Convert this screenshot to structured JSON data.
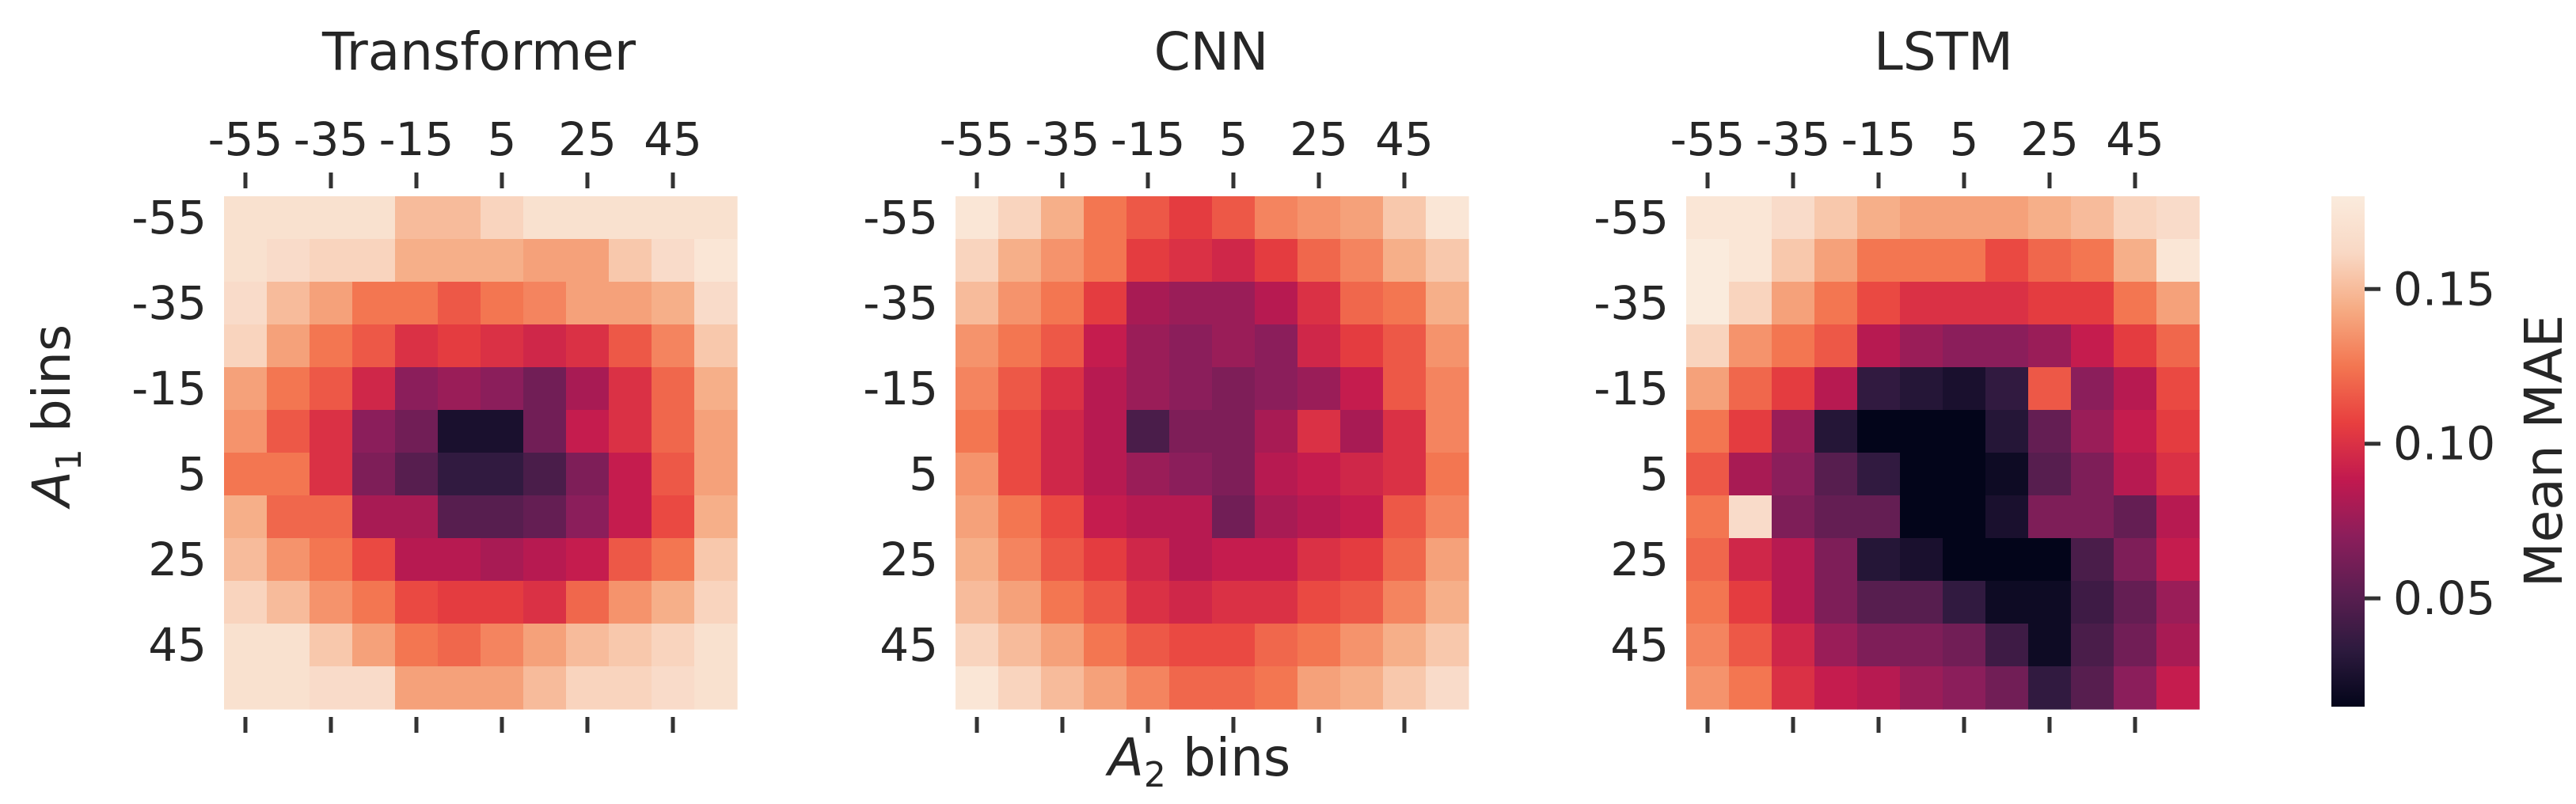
{
  "figure": {
    "shared_xlabel": "A",
    "shared_xlabel_sub": "2",
    "shared_xlabel_suffix": " bins",
    "shared_ylabel": "A",
    "shared_ylabel_sub": "1",
    "shared_ylabel_suffix": " bins"
  },
  "chart_data": [
    {
      "type": "heatmap",
      "title": "Transformer",
      "x_tick_labels": [
        "-55",
        "-35",
        "-15",
        "5",
        "25",
        "45"
      ],
      "y_tick_labels": [
        "-55",
        "-35",
        "-15",
        "5",
        "25",
        "45"
      ],
      "x_tick_position": "top",
      "bins": [
        "-55",
        "-45",
        "-35",
        "-25",
        "-15",
        "-5",
        "5",
        "15",
        "25",
        "35",
        "45",
        "55"
      ],
      "values": [
        [
          0.17,
          0.17,
          0.17,
          0.17,
          0.15,
          0.15,
          0.16,
          0.17,
          0.17,
          0.17,
          0.17,
          0.17
        ],
        [
          0.17,
          0.165,
          0.16,
          0.16,
          0.145,
          0.145,
          0.145,
          0.14,
          0.14,
          0.155,
          0.165,
          0.175
        ],
        [
          0.165,
          0.15,
          0.14,
          0.125,
          0.125,
          0.115,
          0.125,
          0.13,
          0.14,
          0.14,
          0.145,
          0.165
        ],
        [
          0.16,
          0.14,
          0.125,
          0.115,
          0.1,
          0.105,
          0.1,
          0.095,
          0.1,
          0.115,
          0.13,
          0.155
        ],
        [
          0.14,
          0.125,
          0.115,
          0.095,
          0.07,
          0.075,
          0.07,
          0.06,
          0.08,
          0.1,
          0.12,
          0.145
        ],
        [
          0.135,
          0.115,
          0.1,
          0.07,
          0.06,
          0.025,
          0.025,
          0.06,
          0.09,
          0.1,
          0.12,
          0.14
        ],
        [
          0.125,
          0.125,
          0.1,
          0.065,
          0.05,
          0.035,
          0.035,
          0.045,
          0.065,
          0.09,
          0.115,
          0.14
        ],
        [
          0.145,
          0.12,
          0.12,
          0.08,
          0.08,
          0.05,
          0.05,
          0.055,
          0.07,
          0.09,
          0.11,
          0.145
        ],
        [
          0.15,
          0.135,
          0.125,
          0.11,
          0.085,
          0.085,
          0.08,
          0.085,
          0.09,
          0.115,
          0.125,
          0.155
        ],
        [
          0.16,
          0.15,
          0.135,
          0.125,
          0.11,
          0.105,
          0.105,
          0.1,
          0.12,
          0.135,
          0.145,
          0.16
        ],
        [
          0.17,
          0.17,
          0.155,
          0.14,
          0.125,
          0.12,
          0.13,
          0.14,
          0.15,
          0.155,
          0.16,
          0.17
        ],
        [
          0.17,
          0.17,
          0.165,
          0.165,
          0.14,
          0.14,
          0.14,
          0.15,
          0.16,
          0.16,
          0.165,
          0.17
        ]
      ]
    },
    {
      "type": "heatmap",
      "title": "CNN",
      "x_tick_labels": [
        "-55",
        "-35",
        "-15",
        "5",
        "25",
        "45"
      ],
      "y_tick_labels": [
        "-55",
        "-35",
        "-15",
        "5",
        "25",
        "45"
      ],
      "x_tick_position": "top",
      "bins": [
        "-55",
        "-45",
        "-35",
        "-25",
        "-15",
        "-5",
        "5",
        "15",
        "25",
        "35",
        "45",
        "55"
      ],
      "values": [
        [
          0.175,
          0.16,
          0.145,
          0.125,
          0.115,
          0.105,
          0.115,
          0.13,
          0.135,
          0.14,
          0.155,
          0.175
        ],
        [
          0.16,
          0.145,
          0.135,
          0.125,
          0.105,
          0.1,
          0.095,
          0.105,
          0.12,
          0.13,
          0.145,
          0.155
        ],
        [
          0.15,
          0.135,
          0.125,
          0.105,
          0.08,
          0.075,
          0.075,
          0.085,
          0.1,
          0.12,
          0.125,
          0.145
        ],
        [
          0.135,
          0.125,
          0.115,
          0.09,
          0.075,
          0.07,
          0.075,
          0.07,
          0.095,
          0.105,
          0.115,
          0.135
        ],
        [
          0.13,
          0.115,
          0.1,
          0.085,
          0.075,
          0.07,
          0.065,
          0.07,
          0.075,
          0.09,
          0.115,
          0.13
        ],
        [
          0.125,
          0.11,
          0.095,
          0.085,
          0.045,
          0.065,
          0.065,
          0.08,
          0.1,
          0.08,
          0.1,
          0.13
        ],
        [
          0.135,
          0.11,
          0.095,
          0.085,
          0.075,
          0.07,
          0.065,
          0.085,
          0.09,
          0.095,
          0.1,
          0.125
        ],
        [
          0.14,
          0.125,
          0.11,
          0.09,
          0.085,
          0.085,
          0.06,
          0.08,
          0.085,
          0.09,
          0.115,
          0.13
        ],
        [
          0.145,
          0.13,
          0.115,
          0.105,
          0.095,
          0.085,
          0.09,
          0.09,
          0.1,
          0.105,
          0.12,
          0.14
        ],
        [
          0.15,
          0.14,
          0.125,
          0.115,
          0.1,
          0.095,
          0.1,
          0.1,
          0.11,
          0.115,
          0.13,
          0.145
        ],
        [
          0.16,
          0.15,
          0.14,
          0.125,
          0.115,
          0.11,
          0.11,
          0.12,
          0.125,
          0.135,
          0.145,
          0.155
        ],
        [
          0.175,
          0.16,
          0.15,
          0.14,
          0.13,
          0.12,
          0.12,
          0.125,
          0.14,
          0.145,
          0.155,
          0.165
        ]
      ]
    },
    {
      "type": "heatmap",
      "title": "LSTM",
      "x_tick_labels": [
        "-55",
        "-35",
        "-15",
        "5",
        "25",
        "45"
      ],
      "y_tick_labels": [
        "-55",
        "-35",
        "-15",
        "5",
        "25",
        "45"
      ],
      "x_tick_position": "top",
      "bins": [
        "-55",
        "-45",
        "-35",
        "-25",
        "-15",
        "-5",
        "5",
        "15",
        "25",
        "35",
        "45",
        "55"
      ],
      "values": [
        [
          0.175,
          0.175,
          0.165,
          0.155,
          0.145,
          0.14,
          0.14,
          0.14,
          0.145,
          0.15,
          0.16,
          0.165
        ],
        [
          0.18,
          0.175,
          0.155,
          0.14,
          0.125,
          0.125,
          0.125,
          0.11,
          0.12,
          0.125,
          0.145,
          0.175
        ],
        [
          0.18,
          0.16,
          0.14,
          0.125,
          0.11,
          0.1,
          0.1,
          0.1,
          0.105,
          0.105,
          0.125,
          0.14
        ],
        [
          0.16,
          0.135,
          0.125,
          0.115,
          0.085,
          0.075,
          0.07,
          0.07,
          0.075,
          0.09,
          0.105,
          0.12
        ],
        [
          0.14,
          0.12,
          0.105,
          0.085,
          0.035,
          0.03,
          0.025,
          0.035,
          0.115,
          0.07,
          0.085,
          0.11
        ],
        [
          0.125,
          0.105,
          0.075,
          0.03,
          0.015,
          0.005,
          0.0,
          0.03,
          0.055,
          0.075,
          0.09,
          0.105
        ],
        [
          0.115,
          0.08,
          0.07,
          0.05,
          0.035,
          0.005,
          0.015,
          0.02,
          0.05,
          0.065,
          0.085,
          0.1
        ],
        [
          0.125,
          0.165,
          0.065,
          0.055,
          0.055,
          0.01,
          0.005,
          0.025,
          0.065,
          0.065,
          0.055,
          0.085
        ],
        [
          0.12,
          0.095,
          0.085,
          0.065,
          0.03,
          0.025,
          0.01,
          0.015,
          0.01,
          0.045,
          0.065,
          0.09
        ],
        [
          0.125,
          0.105,
          0.085,
          0.065,
          0.05,
          0.05,
          0.035,
          0.02,
          0.02,
          0.04,
          0.055,
          0.075
        ],
        [
          0.13,
          0.115,
          0.095,
          0.075,
          0.065,
          0.065,
          0.06,
          0.04,
          0.02,
          0.045,
          0.06,
          0.08
        ],
        [
          0.135,
          0.125,
          0.1,
          0.09,
          0.085,
          0.075,
          0.07,
          0.06,
          0.035,
          0.05,
          0.07,
          0.09
        ]
      ]
    }
  ],
  "colorbar": {
    "label": "Mean MAE",
    "range": [
      0.015,
      0.18
    ],
    "tick_values": [
      0.05,
      0.1,
      0.15
    ],
    "tick_labels": [
      "0.05",
      "0.10",
      "0.15"
    ],
    "colormap": "rocket",
    "stops": [
      "#03051a",
      "#2d1a3e",
      "#5b1e51",
      "#8b1e5b",
      "#c1194f",
      "#e83f3f",
      "#f37651",
      "#f6ab83",
      "#f9d8c4",
      "#faebdd"
    ]
  }
}
